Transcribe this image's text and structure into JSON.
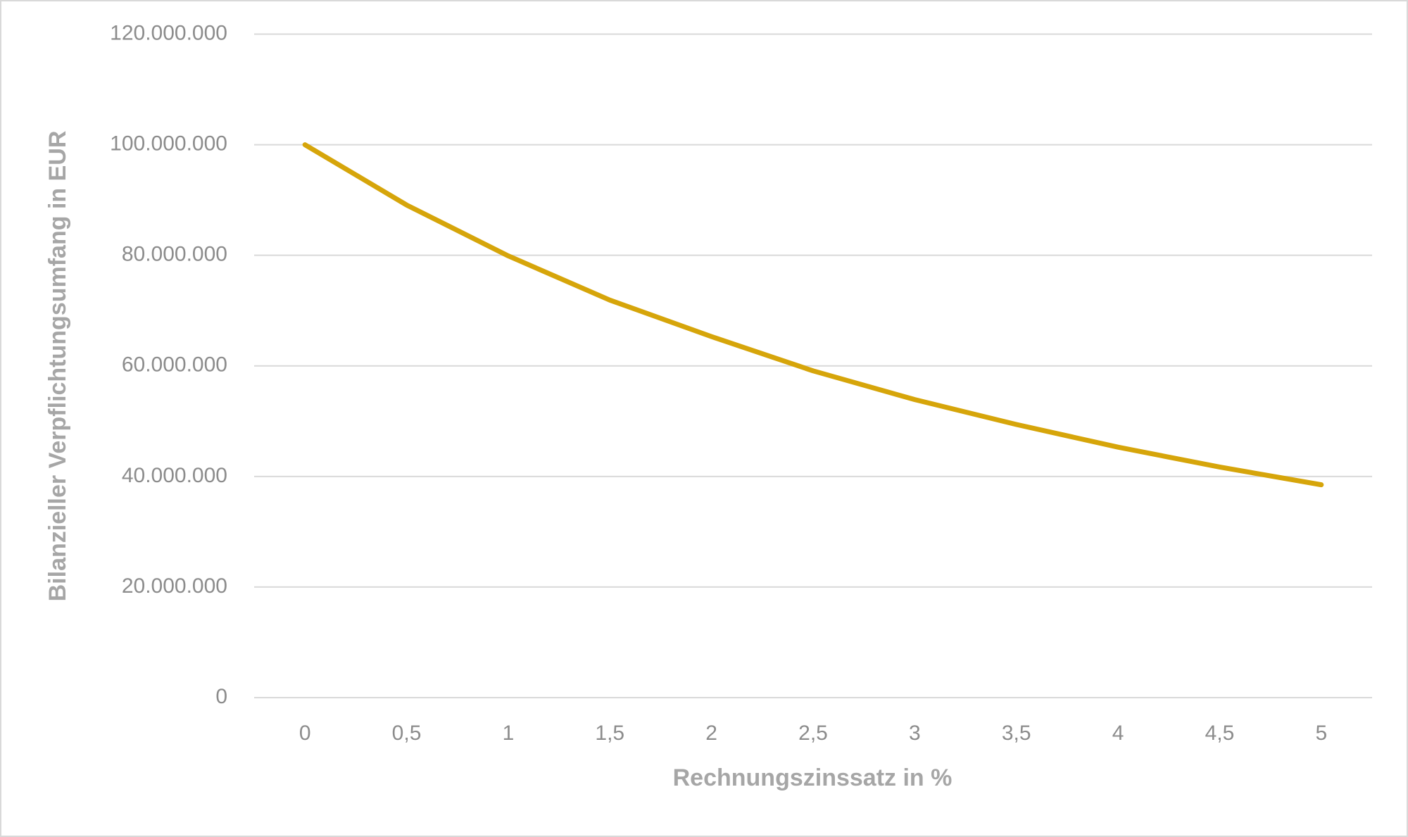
{
  "chart_data": {
    "type": "line",
    "x_label": "Rechnungszinssatz in %",
    "y_label": "Bilanzieller Verpflichtungsumfang in EUR",
    "categories": [
      "0",
      "0,5",
      "1",
      "1,5",
      "2",
      "2,5",
      "3",
      "3,5",
      "4",
      "4,5",
      "5"
    ],
    "values": [
      100000000,
      89100000,
      79900000,
      71900000,
      65300000,
      59100000,
      53900000,
      49400000,
      45300000,
      41700000,
      38500000
    ],
    "color": "#d6a50a",
    "ylim": [
      0,
      120000000
    ],
    "yticks": [
      0,
      {
        "value": 20000000,
        "label": "20.000.000"
      },
      {
        "value": 40000000,
        "label": "40.000.000"
      },
      {
        "value": 60000000,
        "label": "60.000.000"
      },
      {
        "value": 80000000,
        "label": "80.000.000"
      },
      {
        "value": 100000000,
        "label": "100.000.000"
      },
      {
        "value": 120000000,
        "label": "120.000.000"
      }
    ],
    "grid": true
  }
}
